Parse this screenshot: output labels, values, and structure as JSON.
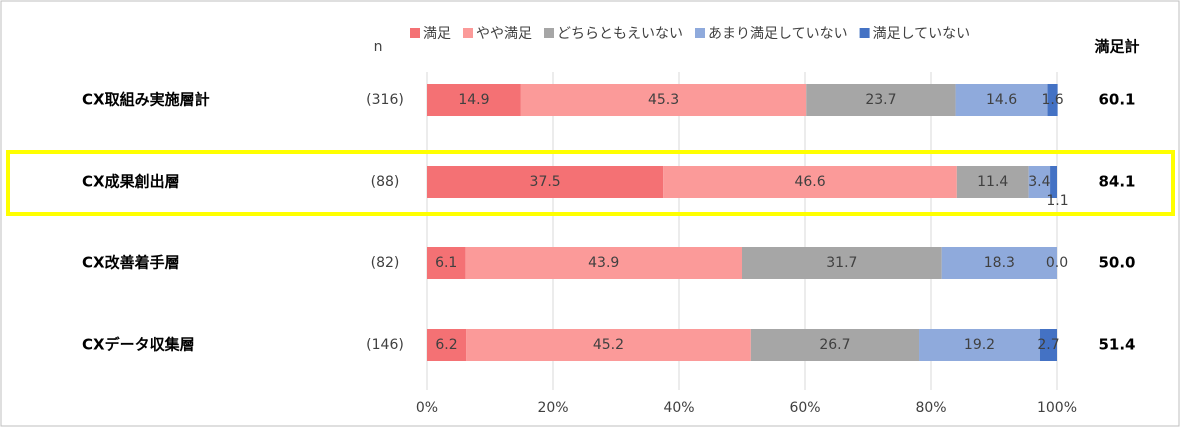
{
  "chart_data": {
    "type": "stacked-bar",
    "categories": [
      "CX取組み実施層計",
      "CX成果創出層",
      "CX改善着手層",
      "CXデータ収集層"
    ],
    "n_header": "n",
    "n_labels": [
      "(316)",
      "(88)",
      "(82)",
      "(146)"
    ],
    "series": [
      {
        "name": "満足",
        "color": "#f47174",
        "values": [
          14.9,
          37.5,
          6.1,
          6.2
        ]
      },
      {
        "name": "やや満足",
        "color": "#fb9a99",
        "values": [
          45.3,
          46.6,
          43.9,
          45.2
        ]
      },
      {
        "name": "どちらともえいない",
        "color": "#a6a6a6",
        "values": [
          23.7,
          11.4,
          31.7,
          26.7
        ]
      },
      {
        "name": "あまり満足していない",
        "color": "#8faadc",
        "values": [
          14.6,
          3.4,
          18.3,
          19.2
        ]
      },
      {
        "name": "満足していない",
        "color": "#4472c4",
        "values": [
          1.6,
          1.1,
          0,
          2.7
        ],
        "value_labels": [
          "1.6",
          "1.1",
          "0.0",
          "2.7"
        ]
      }
    ],
    "totals": {
      "name": "満足計",
      "values": [
        60.1,
        84.1,
        50,
        51.4
      ],
      "value_labels": [
        "60.1",
        "84.1",
        "50.0",
        "51.4"
      ]
    },
    "xlim": [
      0,
      100
    ],
    "xticks": [
      {
        "value": 0,
        "label": "0%"
      },
      {
        "value": 20,
        "label": "20%"
      },
      {
        "value": 40,
        "label": "40%"
      },
      {
        "value": 60,
        "label": "60%"
      },
      {
        "value": 80,
        "label": "80%"
      },
      {
        "value": 100,
        "label": "100%"
      }
    ],
    "grid": true
  }
}
